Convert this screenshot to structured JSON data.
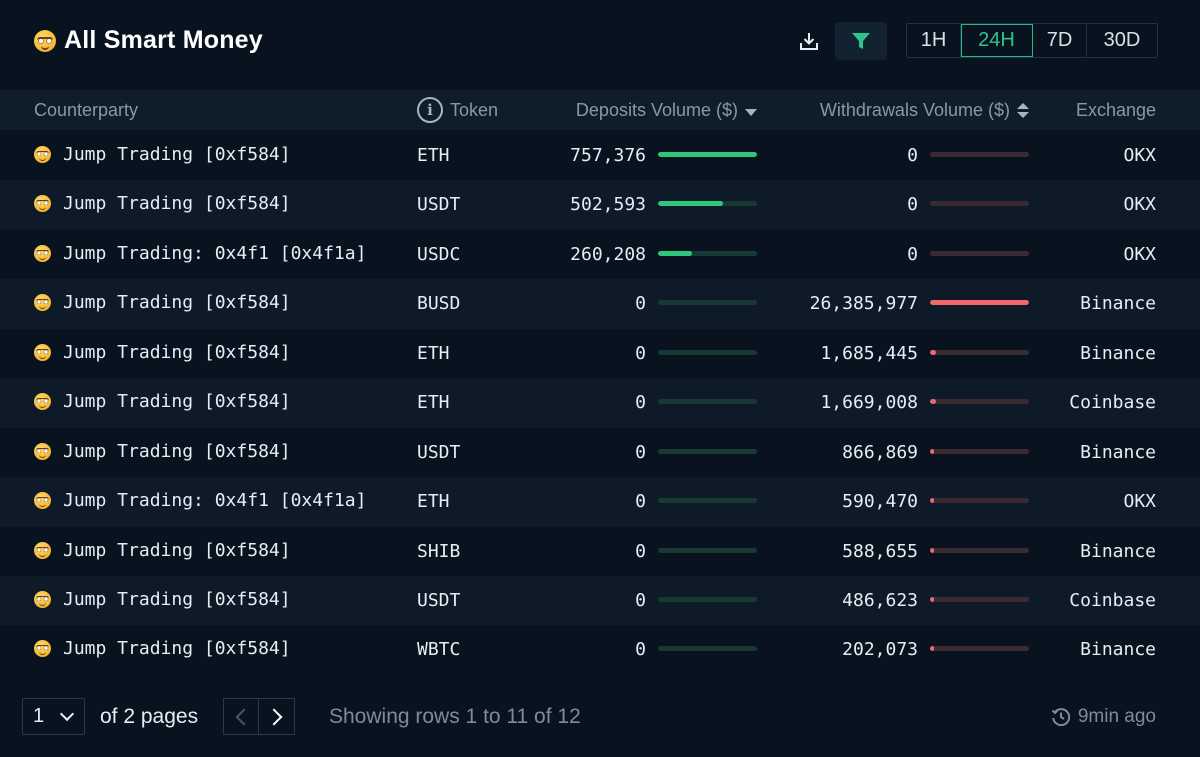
{
  "header": {
    "title": "All Smart Money",
    "icon": "nerd-face-emoji",
    "time_tabs": [
      {
        "label": "1H",
        "active": false
      },
      {
        "label": "24H",
        "active": true
      },
      {
        "label": "7D",
        "active": false
      },
      {
        "label": "30D",
        "active": false
      }
    ]
  },
  "table": {
    "columns": {
      "counterparty": "Counterparty",
      "token": "Token",
      "deposits": "Deposits Volume ($)",
      "withdrawals": "Withdrawals Volume ($)",
      "exchange": "Exchange"
    },
    "rows": [
      {
        "counterparty": "Jump Trading [0xf584]",
        "token": "ETH",
        "deposits": "757,376",
        "deposits_pct": 100,
        "withdrawals": "0",
        "withdrawals_pct": 0,
        "exchange": "OKX"
      },
      {
        "counterparty": "Jump Trading [0xf584]",
        "token": "USDT",
        "deposits": "502,593",
        "deposits_pct": 66,
        "withdrawals": "0",
        "withdrawals_pct": 0,
        "exchange": "OKX"
      },
      {
        "counterparty": "Jump Trading: 0x4f1 [0x4f1a]",
        "token": "USDC",
        "deposits": "260,208",
        "deposits_pct": 34,
        "withdrawals": "0",
        "withdrawals_pct": 0,
        "exchange": "OKX"
      },
      {
        "counterparty": "Jump Trading [0xf584]",
        "token": "BUSD",
        "deposits": "0",
        "deposits_pct": 0,
        "withdrawals": "26,385,977",
        "withdrawals_pct": 100,
        "exchange": "Binance"
      },
      {
        "counterparty": "Jump Trading [0xf584]",
        "token": "ETH",
        "deposits": "0",
        "deposits_pct": 0,
        "withdrawals": "1,685,445",
        "withdrawals_pct": 6.4,
        "exchange": "Binance"
      },
      {
        "counterparty": "Jump Trading [0xf584]",
        "token": "ETH",
        "deposits": "0",
        "deposits_pct": 0,
        "withdrawals": "1,669,008",
        "withdrawals_pct": 6.3,
        "exchange": "Coinbase"
      },
      {
        "counterparty": "Jump Trading [0xf584]",
        "token": "USDT",
        "deposits": "0",
        "deposits_pct": 0,
        "withdrawals": "866,869",
        "withdrawals_pct": 3.3,
        "exchange": "Binance"
      },
      {
        "counterparty": "Jump Trading: 0x4f1 [0x4f1a]",
        "token": "ETH",
        "deposits": "0",
        "deposits_pct": 0,
        "withdrawals": "590,470",
        "withdrawals_pct": 2.2,
        "exchange": "OKX"
      },
      {
        "counterparty": "Jump Trading [0xf584]",
        "token": "SHIB",
        "deposits": "0",
        "deposits_pct": 0,
        "withdrawals": "588,655",
        "withdrawals_pct": 2.2,
        "exchange": "Binance"
      },
      {
        "counterparty": "Jump Trading [0xf584]",
        "token": "USDT",
        "deposits": "0",
        "deposits_pct": 0,
        "withdrawals": "486,623",
        "withdrawals_pct": 1.8,
        "exchange": "Coinbase"
      },
      {
        "counterparty": "Jump Trading [0xf584]",
        "token": "WBTC",
        "deposits": "0",
        "deposits_pct": 0,
        "withdrawals": "202,073",
        "withdrawals_pct": 0.8,
        "exchange": "Binance"
      }
    ]
  },
  "footer": {
    "page_value": "1",
    "of_pages": "of 2 pages",
    "showing": "Showing rows 1 to 11 of 12",
    "updated": "9min ago"
  },
  "colors": {
    "background": "#08131f",
    "accent": "#2ec48e",
    "deposit_bar": "#2ec87a",
    "withdrawal_bar": "#f0686b"
  }
}
